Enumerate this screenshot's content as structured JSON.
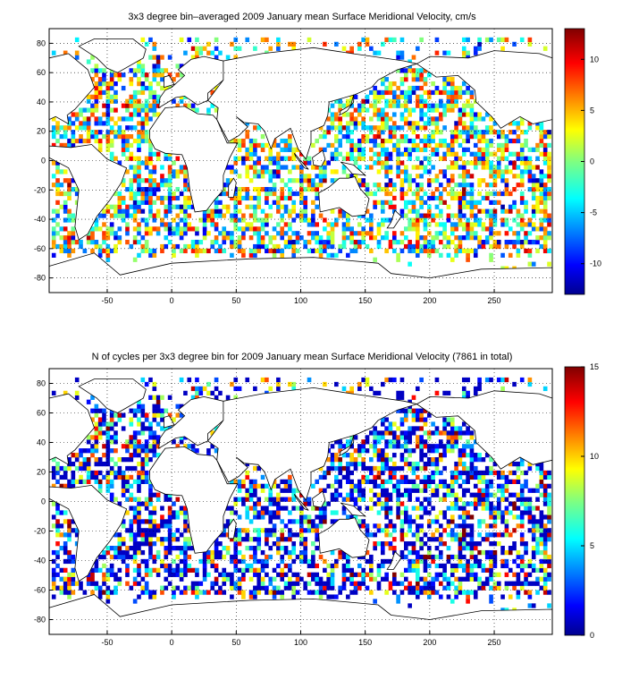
{
  "chart_data": [
    {
      "type": "heatmap",
      "title": "3x3 degree bin–averaged 2009 January mean Surface Meridional Velocity, cm/s",
      "xlim": [
        -95,
        295
      ],
      "ylim": [
        -90,
        90
      ],
      "xticks": [
        -50,
        0,
        50,
        100,
        150,
        200,
        250
      ],
      "yticks": [
        -80,
        -60,
        -40,
        -20,
        0,
        20,
        40,
        60,
        80
      ],
      "bin_size_deg": 3,
      "grid": true,
      "colorbar": {
        "min": -13,
        "max": 13,
        "ticks": [
          -10,
          -5,
          0,
          5,
          10
        ],
        "colormap": "jet",
        "position": "right"
      },
      "seed": 12345,
      "distribution": "diverging"
    },
    {
      "type": "heatmap",
      "title": "N of cycles per 3x3 degree bin for 2009 January mean Surface Meridional Velocity (7861 in total)",
      "xlim": [
        -95,
        295
      ],
      "ylim": [
        -90,
        90
      ],
      "xticks": [
        -50,
        0,
        50,
        100,
        150,
        200,
        250
      ],
      "yticks": [
        -80,
        -60,
        -40,
        -20,
        0,
        20,
        40,
        60,
        80
      ],
      "bin_size_deg": 3,
      "grid": true,
      "colorbar": {
        "min": 0,
        "max": 15,
        "ticks": [
          0,
          5,
          10,
          15
        ],
        "colormap": "jet",
        "position": "right"
      },
      "seed": 12345,
      "distribution": "counts"
    }
  ]
}
